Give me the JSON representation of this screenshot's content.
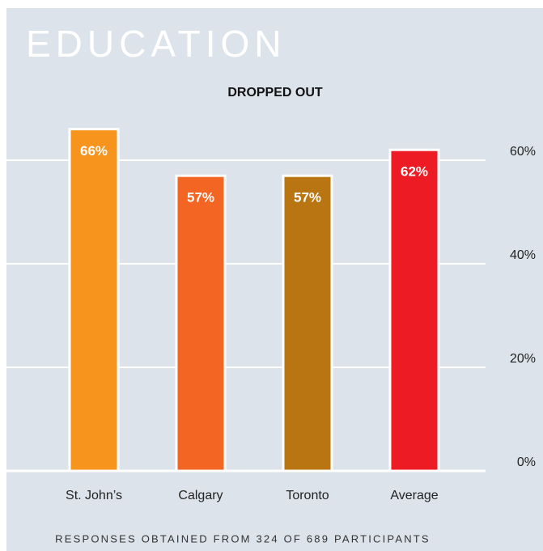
{
  "chart_data": {
    "type": "bar",
    "title": "EDUCATION",
    "subtitle": "DROPPED OUT",
    "categories": [
      "St. John’s",
      "Calgary",
      "Toronto",
      "Average"
    ],
    "values": [
      66,
      57,
      57,
      62
    ],
    "value_labels": [
      "66%",
      "57%",
      "57%",
      "62%"
    ],
    "colors": [
      "#f7941d",
      "#f26522",
      "#b87511",
      "#ed1c24"
    ],
    "ylim": [
      0,
      90
    ],
    "yticks": [
      {
        "value": 0,
        "label": "0%"
      },
      {
        "value": 20,
        "label": "20%"
      },
      {
        "value": 40,
        "label": "40%"
      },
      {
        "value": 60,
        "label": "60%"
      }
    ],
    "grid": true,
    "note": "RESPONSES OBTAINED FROM 324 OF 689 PARTICIPANTS"
  }
}
